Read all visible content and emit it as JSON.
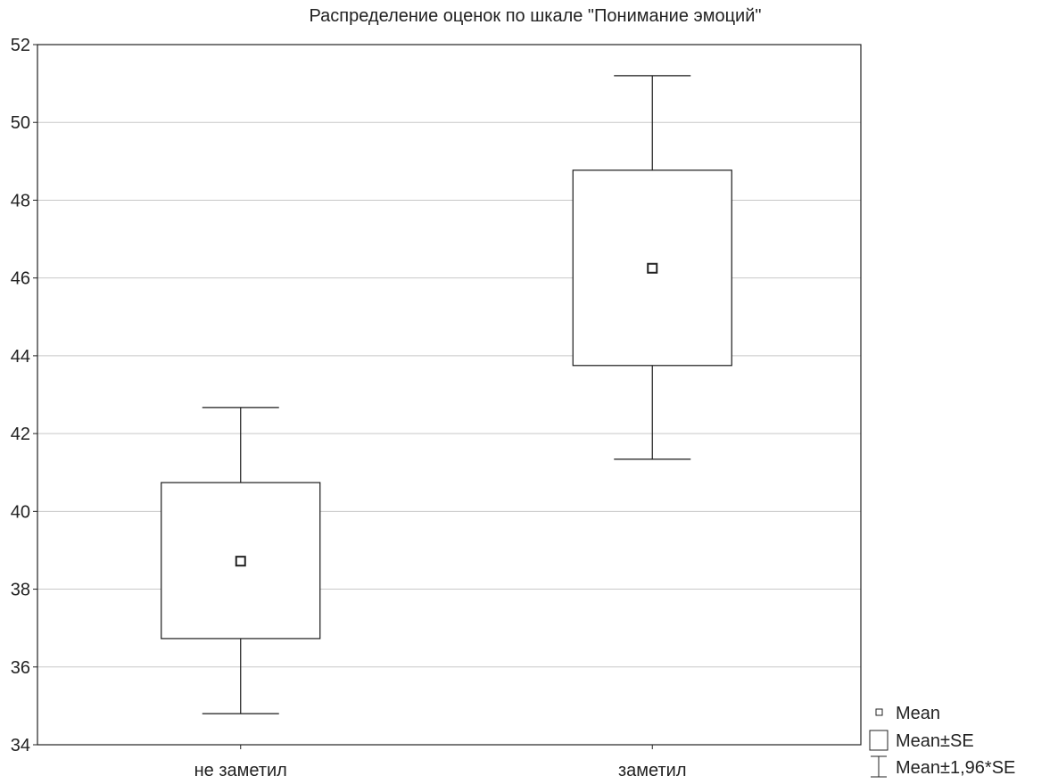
{
  "chart_data": {
    "type": "box",
    "title": "Распределение оценок по шкале \"Понимание эмоций\"",
    "xlabel": "",
    "ylabel": "",
    "ylim": [
      34,
      52
    ],
    "yticks": [
      34,
      36,
      38,
      40,
      42,
      44,
      46,
      48,
      50,
      52
    ],
    "grid": true,
    "legend_placement": "bottom-right",
    "categories": [
      "не заметил",
      "заметил"
    ],
    "mean": [
      38.72,
      46.25
    ],
    "se_low": [
      36.73,
      43.75
    ],
    "se_high": [
      40.74,
      48.77
    ],
    "ci_low": [
      34.8,
      41.34
    ],
    "ci_high": [
      42.67,
      51.2
    ],
    "legend": [
      "Mean",
      "Mean±SE",
      "Mean±1,96*SE"
    ],
    "colors": {
      "line": "#1a1a1a",
      "grid": "#c8c8c8",
      "box_fill": "#ffffff"
    }
  }
}
